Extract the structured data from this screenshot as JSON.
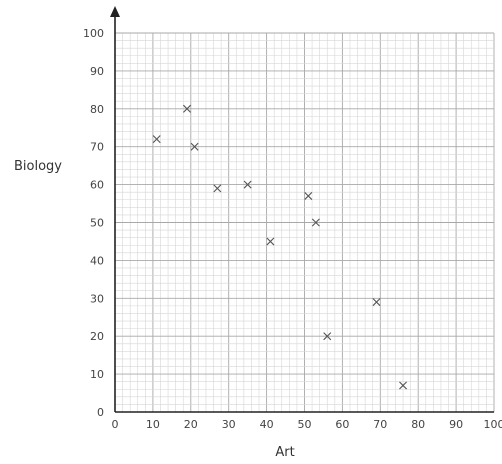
{
  "chart_data": {
    "type": "scatter",
    "title": "",
    "xlabel": "Art",
    "ylabel": "Biology",
    "xlim": [
      0,
      100
    ],
    "ylim": [
      0,
      100
    ],
    "x_ticks": [
      0,
      10,
      20,
      30,
      40,
      50,
      60,
      70,
      80,
      90,
      100
    ],
    "y_ticks": [
      0,
      10,
      20,
      30,
      40,
      50,
      60,
      70,
      80,
      90,
      100
    ],
    "grid": true,
    "marker": "cross",
    "points": [
      {
        "x": 11,
        "y": 72
      },
      {
        "x": 19,
        "y": 80
      },
      {
        "x": 21,
        "y": 70
      },
      {
        "x": 27,
        "y": 59
      },
      {
        "x": 35,
        "y": 60
      },
      {
        "x": 41,
        "y": 45
      },
      {
        "x": 51,
        "y": 57
      },
      {
        "x": 53,
        "y": 50
      },
      {
        "x": 56,
        "y": 20
      },
      {
        "x": 69,
        "y": 29
      },
      {
        "x": 76,
        "y": 7
      }
    ]
  }
}
